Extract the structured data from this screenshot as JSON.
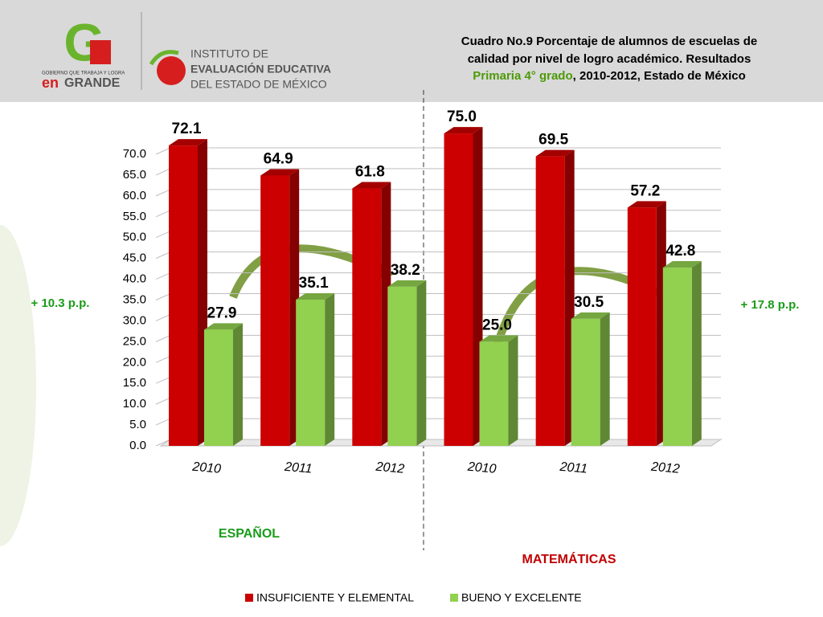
{
  "logos": {
    "gov_tagline": "GOBIERNO QUE TRABAJA Y LOGRA",
    "gov_en": "en",
    "gov_grande": "GRANDE",
    "inst_line1": "INSTITUTO DE",
    "inst_line2": "EVALUACIÓN EDUCATIVA",
    "inst_line3": "DEL ESTADO DE MÉXICO"
  },
  "chart_data": {
    "type": "bar",
    "title": [
      "Cuadro No.9 Porcentaje de alumnos de escuelas de",
      "calidad por nivel de logro académico. Resultados",
      "Primaria 4° grado",
      ", 2010-2012, Estado de México"
    ],
    "categories": [
      "2010",
      "2011",
      "2012",
      "2010",
      "2011",
      "2012"
    ],
    "groups": [
      "ESPAÑOL",
      "MATEMÁTICAS"
    ],
    "annotations": [
      "+ 10.3  p.p.",
      "+ 17.8 p.p."
    ],
    "series": [
      {
        "name": "INSUFICIENTE Y ELEMENTAL",
        "color": "#cc0000",
        "values": [
          72.1,
          64.9,
          61.8,
          75.0,
          69.5,
          57.2
        ],
        "value_labels": [
          "72.1",
          "64.9",
          "61.8",
          "75.0",
          "69.5",
          "57.2"
        ]
      },
      {
        "name": "BUENO Y EXCELENTE",
        "color": "#92d050",
        "values": [
          27.9,
          35.1,
          38.2,
          25.0,
          30.5,
          42.8
        ],
        "value_labels": [
          "27.9",
          "35.1",
          "38.2",
          "25.0",
          "30.5",
          "42.8"
        ]
      }
    ],
    "ylim": [
      0,
      70
    ],
    "yticks": [
      {
        "value": 0,
        "label": "0.0"
      },
      {
        "value": 5,
        "label": "5.0"
      },
      {
        "value": 10,
        "label": "10.0"
      },
      {
        "value": 15,
        "label": "15.0"
      },
      {
        "value": 20,
        "label": "20.0"
      },
      {
        "value": 25,
        "label": "25.0"
      },
      {
        "value": 30,
        "label": "30.0"
      },
      {
        "value": 35,
        "label": "35.0"
      },
      {
        "value": 40,
        "label": "40.0"
      },
      {
        "value": 45,
        "label": "45.0"
      },
      {
        "value": 50,
        "label": "50.0"
      },
      {
        "value": 55,
        "label": "55.0"
      },
      {
        "value": 60,
        "label": "60.0"
      },
      {
        "value": 65,
        "label": "65.0"
      },
      {
        "value": 70,
        "label": "70.0"
      }
    ],
    "grid": true,
    "legend": "bottom"
  }
}
